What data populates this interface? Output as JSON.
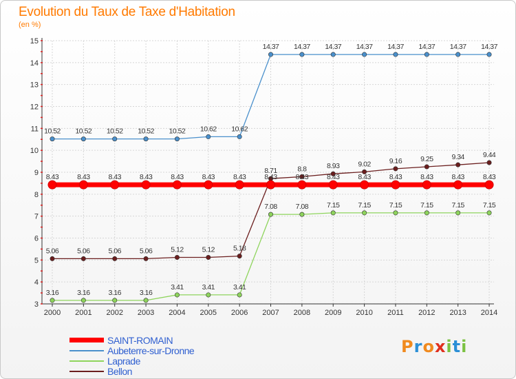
{
  "header": {
    "title": "Evolution du Taux de Taxe d'Habitation",
    "subtitle": "(en %)"
  },
  "chart_data": {
    "type": "line",
    "title": "Evolution du Taux de Taxe d'Habitation",
    "ylabel": "(en %)",
    "xlabel": "",
    "ylim": [
      3,
      15
    ],
    "yticks": [
      "3",
      "4",
      "5",
      "6",
      "7",
      "8",
      "9",
      "10",
      "11",
      "12",
      "13",
      "14",
      "15"
    ],
    "categories": [
      "2000",
      "2001",
      "2002",
      "2003",
      "2004",
      "2005",
      "2006",
      "2007",
      "2008",
      "2009",
      "2010",
      "2011",
      "2012",
      "2013",
      "2014"
    ],
    "legend_position": "bottom-left",
    "series": [
      {
        "name": "SAINT-ROMAIN",
        "color": "#ff0000",
        "values": [
          8.43,
          8.43,
          8.43,
          8.43,
          8.43,
          8.43,
          8.43,
          8.43,
          8.43,
          8.43,
          8.43,
          8.43,
          8.43,
          8.43,
          8.43
        ],
        "labels": [
          "8.43",
          "8.43",
          "8.43",
          "8.43",
          "8.43",
          "8.43",
          "8.43",
          "8.43",
          "8.43",
          "8.43",
          "8.43",
          "8.43",
          "8.43",
          "8.43",
          "8.43"
        ]
      },
      {
        "name": "Aubeterre-sur-Dronne",
        "color": "#4a90cc",
        "values": [
          10.52,
          10.52,
          10.52,
          10.52,
          10.52,
          10.62,
          10.62,
          14.37,
          14.37,
          14.37,
          14.37,
          14.37,
          14.37,
          14.37,
          14.37
        ],
        "labels": [
          "10.52",
          "10.52",
          "10.52",
          "10.52",
          "10.52",
          "10.62",
          "10.62",
          "14.37",
          "14.37",
          "14.37",
          "14.37",
          "14.37",
          "14.37",
          "14.37",
          "14.37"
        ]
      },
      {
        "name": "Laprade",
        "color": "#8ed45c",
        "values": [
          3.16,
          3.16,
          3.16,
          3.16,
          3.41,
          3.41,
          3.41,
          7.08,
          7.08,
          7.15,
          7.15,
          7.15,
          7.15,
          7.15,
          7.15
        ],
        "labels": [
          "3.16",
          "3.16",
          "3.16",
          "3.16",
          "3.41",
          "3.41",
          "3.41",
          "7.08",
          "7.08",
          "7.15",
          "7.15",
          "7.15",
          "7.15",
          "7.15",
          "7.15"
        ]
      },
      {
        "name": "Bellon",
        "color": "#6b1e1e",
        "values": [
          5.06,
          5.06,
          5.06,
          5.06,
          5.12,
          5.12,
          5.18,
          8.71,
          8.8,
          8.93,
          9.02,
          9.16,
          9.25,
          9.34,
          9.44
        ],
        "labels": [
          "5.06",
          "5.06",
          "5.06",
          "5.06",
          "5.12",
          "5.12",
          "5.18",
          "8.71",
          "8.8",
          "8.93",
          "9.02",
          "9.16",
          "9.25",
          "9.34",
          "9.44"
        ]
      }
    ]
  },
  "legend": {
    "items": [
      {
        "label": "SAINT-ROMAIN",
        "color": "#ff0000"
      },
      {
        "label": "Aubeterre-sur-Dronne",
        "color": "#4a90cc"
      },
      {
        "label": "Laprade",
        "color": "#8ed45c"
      },
      {
        "label": "Bellon",
        "color": "#6b1e1e"
      }
    ]
  },
  "brand": {
    "logo_text": "Proxiti",
    "letter_colors": [
      "#f08a1e",
      "#2b8fd6",
      "#f08a1e",
      "#e0301e",
      "#7cc242",
      "#2b8fd6",
      "#7cc242"
    ]
  }
}
